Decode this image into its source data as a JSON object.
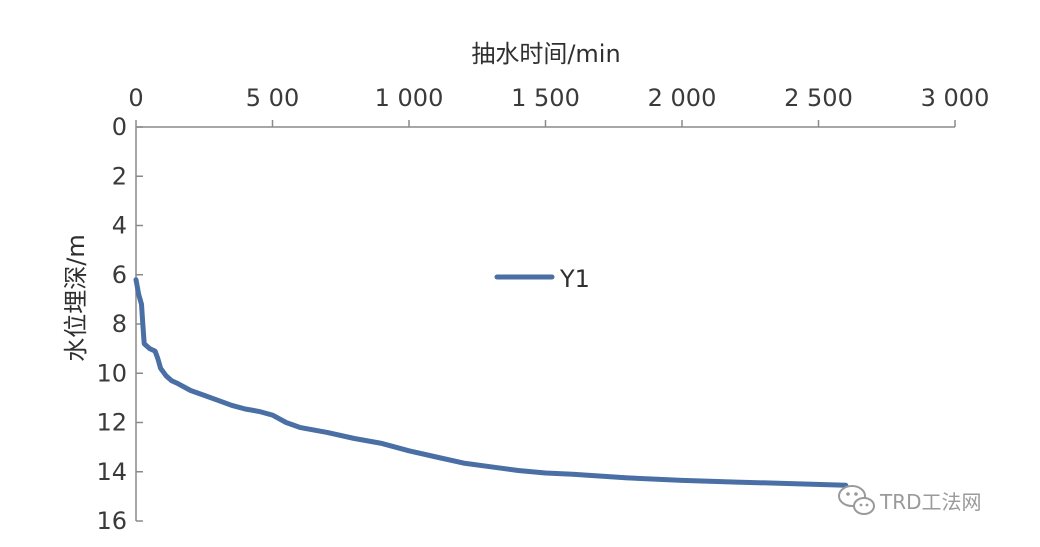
{
  "chart_data": {
    "type": "line",
    "xlabel": "抽水时间/min",
    "ylabel": "水位埋深/m",
    "x_axis_position": "top",
    "y_axis_inverted": true,
    "xlim": [
      0,
      3000
    ],
    "ylim": [
      0,
      16
    ],
    "x_ticks": [
      0,
      500,
      1000,
      1500,
      2000,
      2500,
      3000
    ],
    "x_tick_labels": [
      "0",
      "5 00",
      "1 000",
      "1 500",
      "2 000",
      "2 500",
      "3 000"
    ],
    "y_ticks": [
      0,
      2,
      4,
      6,
      8,
      10,
      12,
      14,
      16
    ],
    "y_tick_labels": [
      "0",
      "2",
      "4",
      "6",
      "8",
      "10",
      "12",
      "14",
      "16"
    ],
    "grid": false,
    "legend_position": "center",
    "series": [
      {
        "name": "Y1",
        "color": "#4a6fa5",
        "x": [
          0,
          10,
          20,
          25,
          30,
          50,
          70,
          80,
          90,
          110,
          130,
          150,
          200,
          250,
          300,
          350,
          400,
          450,
          500,
          550,
          600,
          700,
          800,
          900,
          1000,
          1100,
          1200,
          1300,
          1400,
          1500,
          1600,
          1800,
          2000,
          2200,
          2400,
          2600
        ],
        "y": [
          6.2,
          6.8,
          7.2,
          8.0,
          8.8,
          9.0,
          9.1,
          9.4,
          9.8,
          10.1,
          10.3,
          10.4,
          10.7,
          10.9,
          11.1,
          11.3,
          11.45,
          11.55,
          11.7,
          12.0,
          12.2,
          12.4,
          12.65,
          12.85,
          13.15,
          13.4,
          13.65,
          13.8,
          13.95,
          14.05,
          14.1,
          14.25,
          14.35,
          14.42,
          14.48,
          14.55
        ]
      }
    ]
  },
  "watermark": {
    "text": "TRD工法网",
    "icon": "wechat-icon"
  }
}
